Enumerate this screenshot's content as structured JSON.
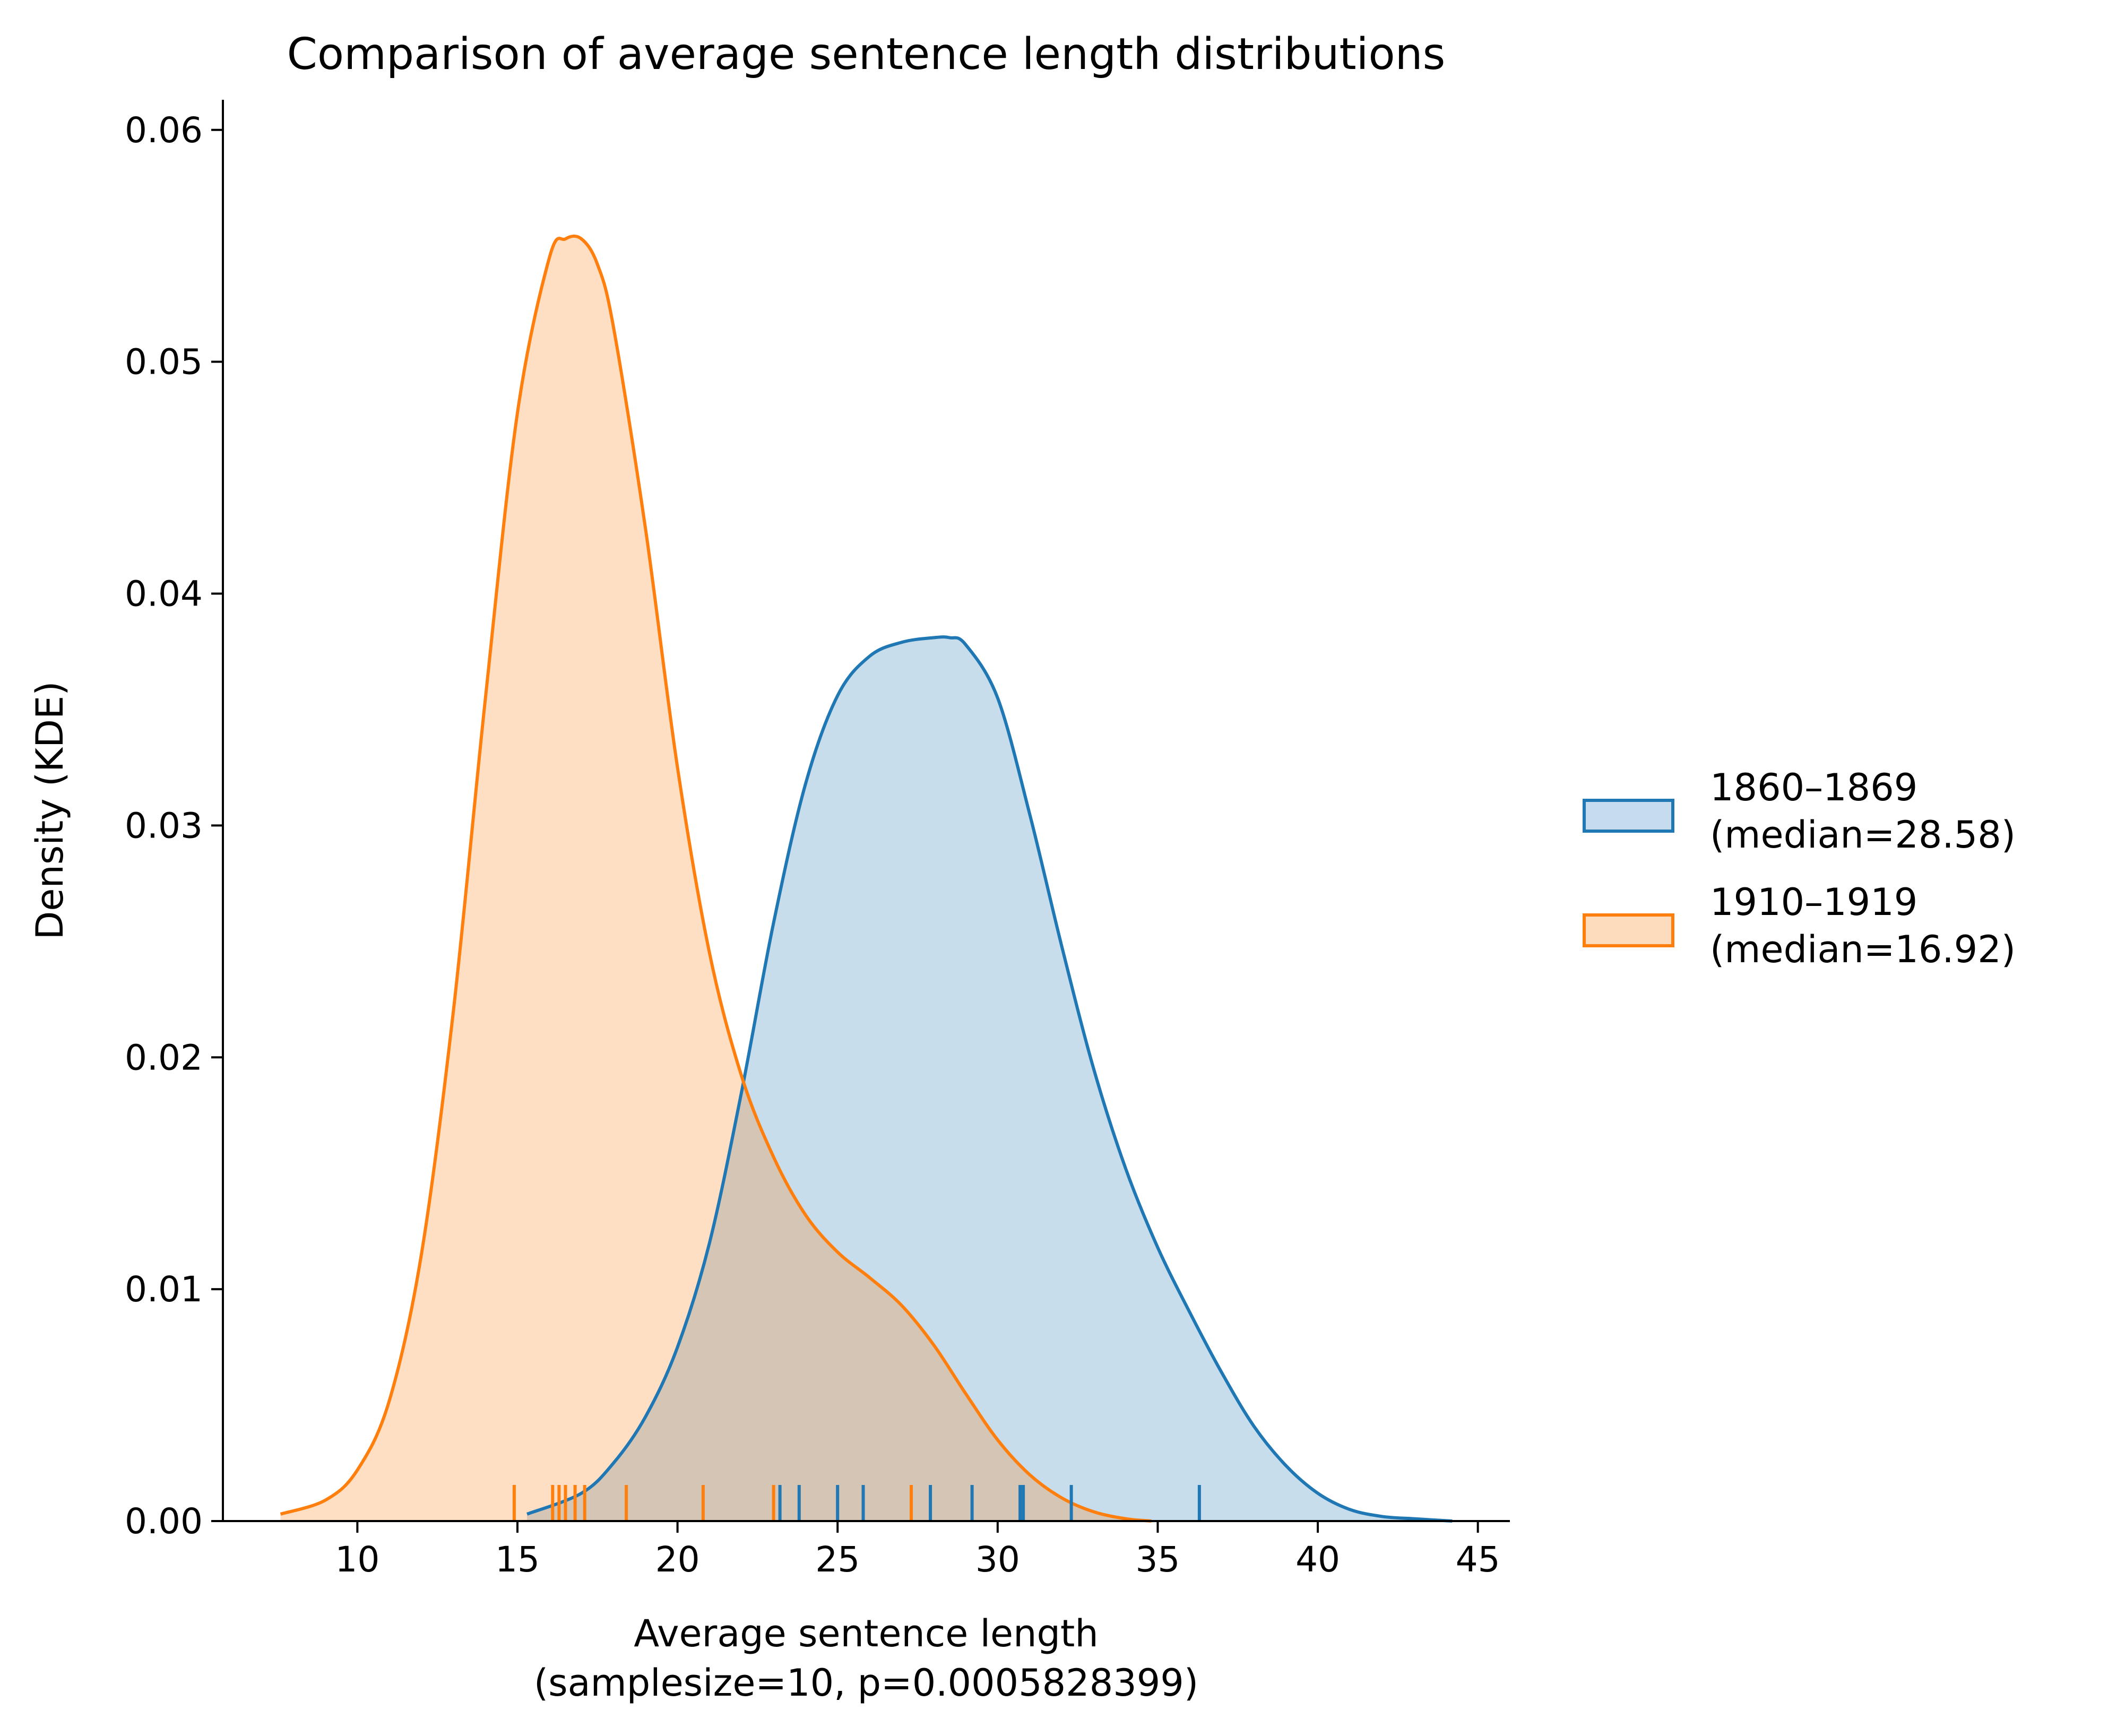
{
  "chart_data": {
    "type": "area",
    "title": "Comparison of average sentence length distributions",
    "xlabel_line1": "Average sentence length",
    "xlabel_line2": "(samplesize=10, p=0.0005828399)",
    "ylabel": "Density (KDE)",
    "xlim": [
      5.8,
      46.0
    ],
    "ylim": [
      0.0,
      0.0613
    ],
    "x_ticks": [
      10,
      15,
      20,
      25,
      30,
      35,
      40,
      45
    ],
    "x_tick_labels": [
      "10",
      "15",
      "20",
      "25",
      "30",
      "35",
      "40",
      "45"
    ],
    "y_ticks": [
      0.0,
      0.01,
      0.02,
      0.03,
      0.04,
      0.05,
      0.06
    ],
    "y_tick_labels": [
      "0.00",
      "0.01",
      "0.02",
      "0.03",
      "0.04",
      "0.05",
      "0.06"
    ],
    "legend_position": "right",
    "series": [
      {
        "legend_line1": "1860–1869",
        "legend_line2": "(median=28.58)",
        "color": "#1f77b4",
        "fill": "#c6dbed",
        "rug": [
          23.2,
          23.8,
          25.0,
          25.8,
          27.9,
          29.2,
          30.7,
          30.8,
          32.3,
          36.3
        ],
        "curve_x": [
          15.3,
          17,
          18,
          19,
          20,
          21,
          22,
          23,
          24,
          25,
          26,
          27,
          28,
          28.5,
          29,
          30,
          31,
          32,
          33,
          34,
          35,
          36,
          37,
          38,
          39,
          40,
          41,
          42,
          43,
          44.2
        ],
        "curve_y": [
          0.0003,
          0.0012,
          0.0025,
          0.0045,
          0.0075,
          0.012,
          0.0185,
          0.0258,
          0.0318,
          0.0356,
          0.0373,
          0.0379,
          0.0381,
          0.0381,
          0.0378,
          0.0355,
          0.0305,
          0.0248,
          0.0195,
          0.0152,
          0.0118,
          0.009,
          0.0064,
          0.0041,
          0.0024,
          0.0012,
          0.0005,
          0.0002,
          0.0001,
          0.0
        ]
      },
      {
        "legend_line1": "1910–1919",
        "legend_line2": "(median=16.92)",
        "color": "#ff7f0e",
        "fill": "#fddbbd",
        "rug": [
          14.9,
          16.1,
          16.3,
          16.5,
          16.8,
          17.1,
          18.4,
          20.8,
          23.0,
          27.3
        ],
        "curve_x": [
          7.6,
          9,
          10,
          11,
          12,
          13,
          14,
          15,
          16,
          16.5,
          17,
          17.5,
          18,
          19,
          20,
          21,
          22,
          23,
          24,
          25,
          26,
          27,
          28,
          29,
          30,
          31,
          32,
          33,
          34,
          34.8
        ],
        "curve_y": [
          0.0003,
          0.0009,
          0.0022,
          0.0052,
          0.0115,
          0.022,
          0.0355,
          0.0478,
          0.0545,
          0.0553,
          0.0553,
          0.0542,
          0.0515,
          0.0428,
          0.0325,
          0.0245,
          0.0192,
          0.0157,
          0.0132,
          0.0116,
          0.0105,
          0.0093,
          0.0076,
          0.0055,
          0.0035,
          0.002,
          0.001,
          0.0004,
          0.0001,
          0.0
        ]
      }
    ]
  }
}
